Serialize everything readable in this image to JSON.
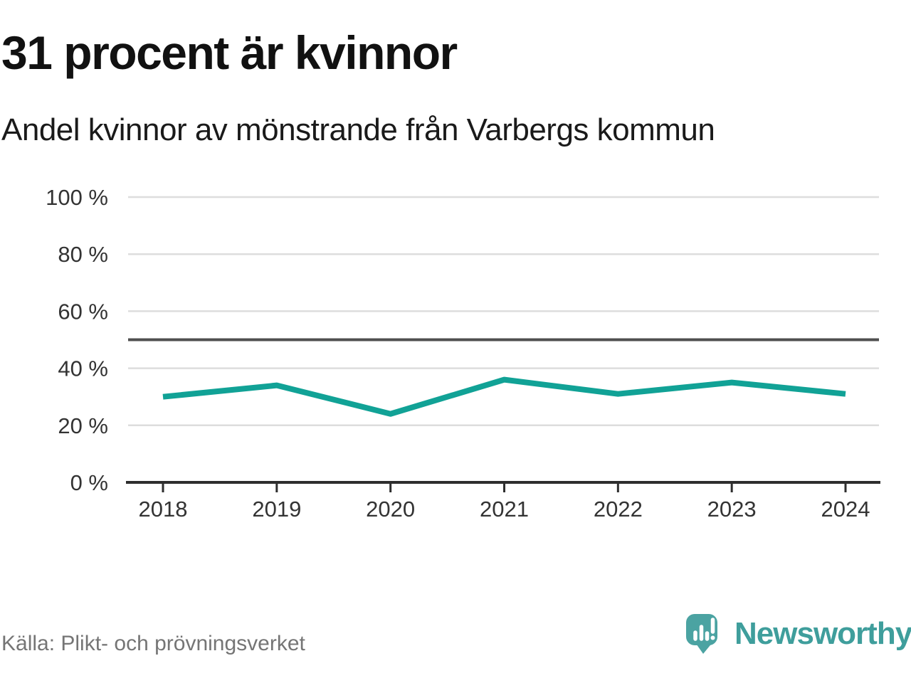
{
  "header": {
    "title": "31 procent är kvinnor",
    "subtitle": "Andel kvinnor av mönstrande från Varbergs kommun"
  },
  "footer": {
    "source": "Källa: Plikt- och prövningsverket",
    "brand": "Newsworthy",
    "logo_icon": "speech-bubble-with-bar-chart-and-exclamation"
  },
  "colors": {
    "line": "#11a296",
    "grid": "#dddddd",
    "reference_line": "#4f4f4f",
    "axis": "#2e2e2e",
    "tick_text": "#333333",
    "logo": "#4ba3a2",
    "brand_text": "#3f9e9c"
  },
  "chart_data": {
    "type": "line",
    "title": "31 procent är kvinnor",
    "subtitle": "Andel kvinnor av mönstrande från Varbergs kommun",
    "x": [
      2018,
      2019,
      2020,
      2021,
      2022,
      2023,
      2024
    ],
    "series": [
      {
        "name": "Andel kvinnor av mönstrande",
        "values": [
          30,
          34,
          24,
          36,
          31,
          35,
          31
        ]
      }
    ],
    "xlabel": "",
    "ylabel": "",
    "ylim": [
      0,
      100
    ],
    "yticks": [
      {
        "value": 0,
        "label": "0 %"
      },
      {
        "value": 20,
        "label": "20 %"
      },
      {
        "value": 40,
        "label": "40 %"
      },
      {
        "value": 60,
        "label": "60 %"
      },
      {
        "value": 80,
        "label": "80 %"
      },
      {
        "value": 100,
        "label": "100 %"
      }
    ],
    "reference_line": 50,
    "grid": true,
    "legend": "none",
    "unit": "%"
  }
}
